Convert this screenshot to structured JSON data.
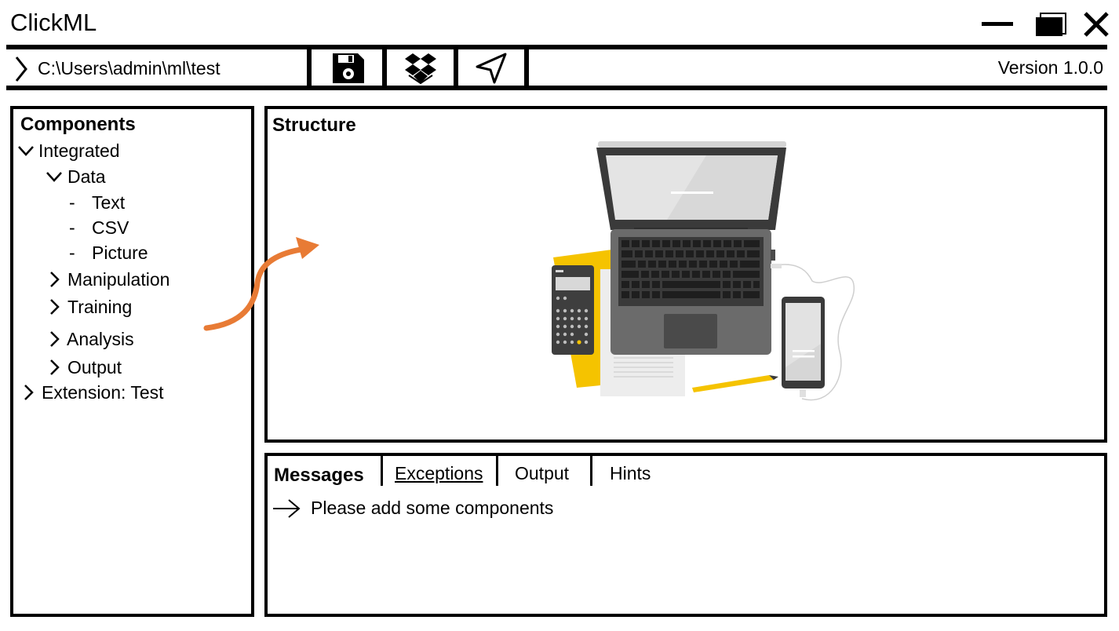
{
  "app": {
    "title": "ClickML",
    "version": "Version 1.0.0"
  },
  "window_controls": [
    "minimize-icon",
    "maximize-icon",
    "close-icon"
  ],
  "toolbar": {
    "path": "C:\\Users\\admin\\ml\\test",
    "buttons": [
      "save-icon",
      "dropbox-icon",
      "send-icon"
    ]
  },
  "components": {
    "title": "Components",
    "tree": {
      "integrated": "Integrated",
      "data": "Data",
      "text": "Text",
      "csv": "CSV",
      "picture": "Picture",
      "manipulation": "Manipulation",
      "training": "Training",
      "analysis": "Analysis",
      "output": "Output",
      "extension": "Extension: Test"
    },
    "dash": "-"
  },
  "structure": {
    "title": "Structure"
  },
  "messages": {
    "tabs": {
      "messages": "Messages",
      "exceptions": "Exceptions",
      "output": "Output",
      "hints": "Hints"
    },
    "items": [
      "Please add some components"
    ]
  },
  "colors": {
    "accent_arrow": "#E87B35",
    "illustration_yellow": "#F5C300",
    "laptop_dark": "#3A3A3A"
  }
}
